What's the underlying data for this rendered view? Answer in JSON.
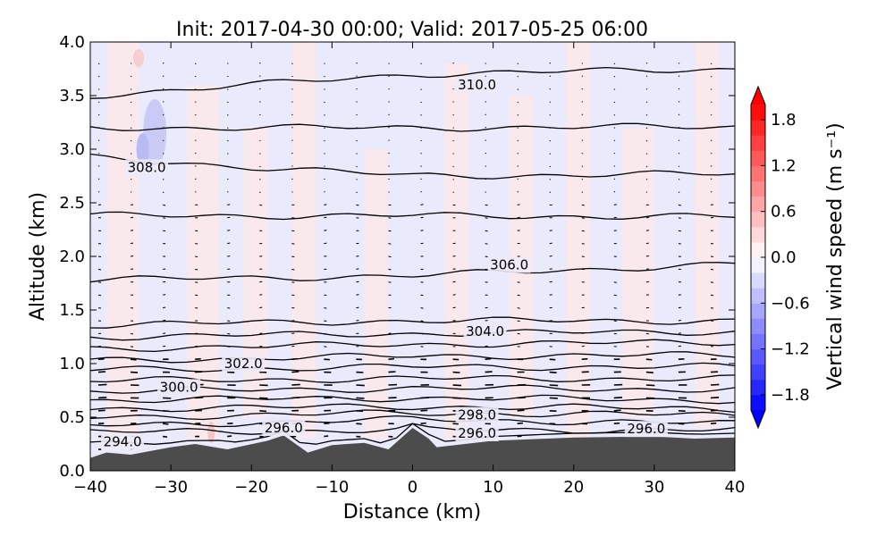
{
  "chart_data": {
    "type": "heatmap",
    "title": "Init: 2017-04-30 00:00; Valid: 2017-05-25 06:00",
    "xlabel": "Distance (km)",
    "ylabel": "Altitude (km)",
    "xlim": [
      -40,
      40
    ],
    "ylim": [
      0.0,
      4.0
    ],
    "xticks": [
      "−40",
      "−30",
      "−20",
      "−10",
      "0",
      "10",
      "20",
      "30",
      "40"
    ],
    "yticks": [
      "0.0",
      "0.5",
      "1.0",
      "1.5",
      "2.0",
      "2.5",
      "3.0",
      "3.5",
      "4.0"
    ],
    "grid": false,
    "colorbar": {
      "label": "Vertical wind speed (m s⁻¹)",
      "range": [
        -2.0,
        2.0
      ],
      "extend": "both",
      "colormap": "bwr",
      "ticks": [
        "−1.8",
        "−1.2",
        "−0.6",
        "0.0",
        "0.6",
        "1.2",
        "1.8"
      ]
    },
    "shading": "near-zero vertical wind: faint red (~+0.1 to +0.2) in vertical streaks, faint blue (~−0.1 to −0.2) elsewhere; blue patch near x=−32, alt 3.0–3.3 (~−0.4)",
    "contour_labels": [
      {
        "text": "294.0",
        "x": -36,
        "alt": 0.27
      },
      {
        "text": "296.0",
        "x": -16,
        "alt": 0.4
      },
      {
        "text": "296.0",
        "x": 8,
        "alt": 0.35
      },
      {
        "text": "296.0",
        "x": 29,
        "alt": 0.39
      },
      {
        "text": "298.0",
        "x": 8,
        "alt": 0.52
      },
      {
        "text": "300.0",
        "x": -29,
        "alt": 0.78
      },
      {
        "text": "302.0",
        "x": -21,
        "alt": 1.0
      },
      {
        "text": "304.0",
        "x": 9,
        "alt": 1.3
      },
      {
        "text": "306.0",
        "x": 12,
        "alt": 1.92
      },
      {
        "text": "308.0",
        "x": -33,
        "alt": 2.83
      },
      {
        "text": "310.0",
        "x": 8,
        "alt": 3.6
      }
    ],
    "isentropes_altitude_km_at_x_-40_0_40": [
      [
        0.26,
        0.24,
        0.3
      ],
      [
        0.36,
        0.38,
        0.38
      ],
      [
        0.42,
        0.48,
        0.44
      ],
      [
        0.5,
        0.54,
        0.52
      ],
      [
        0.58,
        0.6,
        0.58
      ],
      [
        0.66,
        0.68,
        0.66
      ],
      [
        0.74,
        0.77,
        0.76
      ],
      [
        0.84,
        0.86,
        0.86
      ],
      [
        0.94,
        0.97,
        0.97
      ],
      [
        1.03,
        1.07,
        1.08
      ],
      [
        1.14,
        1.18,
        1.2
      ],
      [
        1.25,
        1.28,
        1.3
      ],
      [
        1.36,
        1.4,
        1.4
      ],
      [
        1.78,
        1.82,
        1.93
      ],
      [
        2.38,
        2.38,
        2.37
      ],
      [
        2.92,
        2.75,
        2.77
      ],
      [
        3.2,
        3.2,
        3.21
      ],
      [
        3.5,
        3.7,
        3.75
      ]
    ],
    "terrain_km_at_x": [
      {
        "x": -40,
        "alt": 0.12
      },
      {
        "x": -38,
        "alt": 0.17
      },
      {
        "x": -35,
        "alt": 0.15
      },
      {
        "x": -30,
        "alt": 0.22
      },
      {
        "x": -27,
        "alt": 0.25
      },
      {
        "x": -23,
        "alt": 0.2
      },
      {
        "x": -18,
        "alt": 0.28
      },
      {
        "x": -16,
        "alt": 0.33
      },
      {
        "x": -13,
        "alt": 0.17
      },
      {
        "x": -10,
        "alt": 0.24
      },
      {
        "x": -6,
        "alt": 0.26
      },
      {
        "x": -3,
        "alt": 0.2
      },
      {
        "x": 0,
        "alt": 0.4
      },
      {
        "x": 2,
        "alt": 0.3
      },
      {
        "x": 3,
        "alt": 0.22
      },
      {
        "x": 10,
        "alt": 0.28
      },
      {
        "x": 20,
        "alt": 0.31
      },
      {
        "x": 30,
        "alt": 0.32
      },
      {
        "x": 35,
        "alt": 0.3
      },
      {
        "x": 40,
        "alt": 0.31
      }
    ],
    "wind_vectors": "small arrows at every grid node, mostly rightward (from west), longest (~0.3 km/unit) at 0.6–1.0 km altitude, negligible above 2.5 km"
  }
}
